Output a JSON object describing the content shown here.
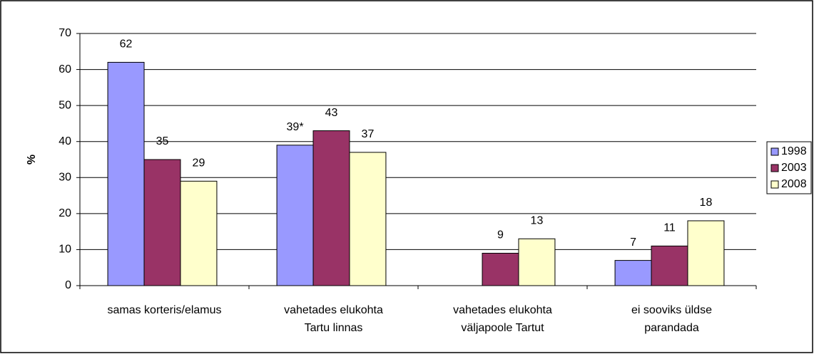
{
  "chart_data": {
    "type": "bar",
    "y_label": "%",
    "categories": [
      [
        "samas korteris/elamus"
      ],
      [
        "vahetades elukohta",
        "Tartu linnas"
      ],
      [
        "vahetades elukohta",
        "väljapoole Tartut"
      ],
      [
        "ei sooviks üldse",
        "parandada"
      ]
    ],
    "series": [
      {
        "name": "1998",
        "color": "#9999ff",
        "values": [
          62,
          39,
          null,
          7
        ],
        "value_labels": [
          "62",
          "39*",
          null,
          "7"
        ]
      },
      {
        "name": "2003",
        "color": "#993366",
        "values": [
          35,
          43,
          9,
          11
        ]
      },
      {
        "name": "2008",
        "color": "#ffffcc",
        "values": [
          29,
          37,
          13,
          18
        ]
      }
    ],
    "ylim": [
      0,
      70
    ],
    "yticks": [
      0,
      10,
      20,
      30,
      40,
      50,
      60,
      70
    ],
    "grid": true,
    "legend": "right"
  }
}
